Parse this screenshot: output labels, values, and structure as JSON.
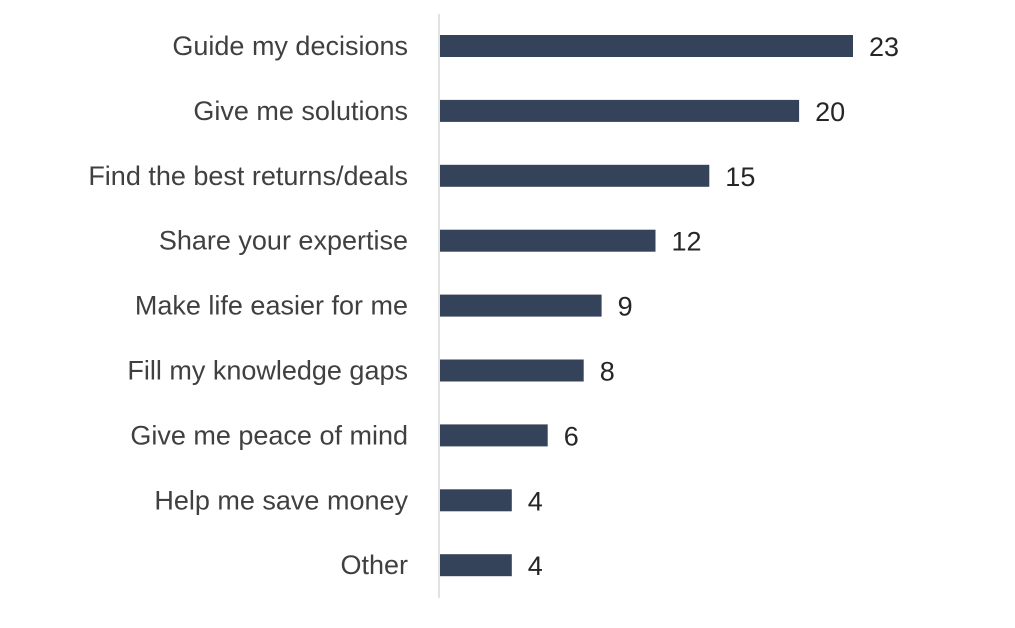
{
  "chart_data": {
    "type": "bar",
    "orientation": "horizontal",
    "categories": [
      "Guide my decisions",
      "Give me solutions",
      "Find the best returns/deals",
      "Share your expertise",
      "Make life easier for me",
      "Fill my knowledge gaps",
      "Give me peace of mind",
      "Help me save money",
      "Other"
    ],
    "values": [
      23,
      20,
      15,
      12,
      9,
      8,
      6,
      4,
      4
    ],
    "value_labels": [
      "23",
      "20",
      "15",
      "12",
      "9",
      "8",
      "6",
      "4",
      "4"
    ],
    "xlim": [
      0,
      25
    ],
    "grid": false,
    "legend": "none",
    "bar_color": "#35435A",
    "axis_color": "#D9D9D9"
  }
}
